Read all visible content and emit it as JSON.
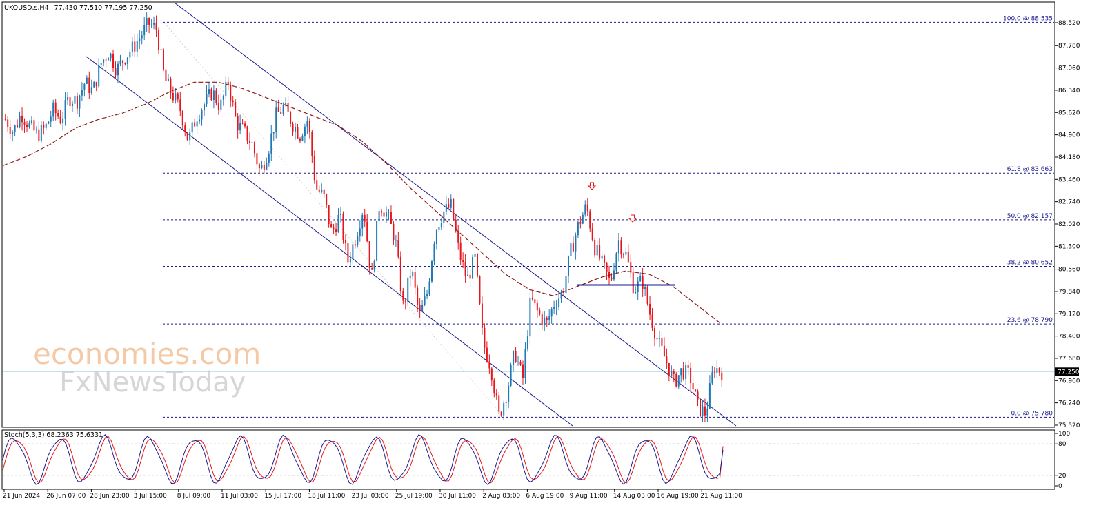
{
  "header": {
    "symbol": "UKOUSD.s,H4",
    "ohlc": "77.430 77.510 77.195 77.250"
  },
  "indicator_header": "Stoch(5,3,3) 68.2363 75.6331",
  "current_price": "77.250",
  "watermark": {
    "line1": "economies.com",
    "line2": "FxNewsToday"
  },
  "colors": {
    "bull": "#1f77b4",
    "bear": "#e8141b",
    "ma": "#8b1a1a",
    "channel": "#1a1a8c",
    "fib": "#1a1a8c",
    "stoch_main": "#1a1a8c",
    "stoch_signal": "#e8141b",
    "current_line": "#a8dce0"
  },
  "chart_data": {
    "type": "candlestick",
    "timeframe": "H4",
    "ylim": [
      75.52,
      88.82
    ],
    "y_ticks": [
      "88.520",
      "87.780",
      "87.060",
      "86.340",
      "85.620",
      "84.900",
      "84.180",
      "83.460",
      "82.740",
      "82.020",
      "81.300",
      "80.560",
      "79.840",
      "79.120",
      "78.400",
      "77.680",
      "76.960",
      "76.240",
      "75.520"
    ],
    "x_ticks": [
      "21 Jun 2024",
      "26 Jun 07:00",
      "28 Jun 23:00",
      "3 Jul 15:00",
      "8 Jul 09:00",
      "11 Jul 03:00",
      "15 Jul 17:00",
      "18 Jul 11:00",
      "23 Jul 03:00",
      "25 Jul 19:00",
      "30 Jul 11:00",
      "2 Aug 03:00",
      "6 Aug 19:00",
      "9 Aug 11:00",
      "14 Aug 03:00",
      "16 Aug 19:00",
      "21 Aug 11:00"
    ],
    "price_path": [
      85.4,
      85.0,
      85.6,
      85.2,
      84.9,
      85.1,
      85.7,
      85.4,
      86.1,
      86.0,
      86.6,
      86.3,
      87.2,
      87.6,
      87.0,
      87.4,
      87.7,
      88.1,
      88.5,
      88.3,
      86.7,
      86.2,
      85.7,
      84.7,
      85.5,
      85.9,
      86.3,
      85.8,
      86.6,
      85.3,
      85.0,
      84.6,
      83.7,
      84.4,
      85.5,
      85.8,
      85.3,
      84.9,
      85.4,
      83.2,
      82.9,
      81.7,
      82.3,
      80.8,
      81.6,
      82.6,
      80.2,
      82.7,
      82.3,
      81.5,
      79.3,
      80.6,
      79.0,
      79.8,
      81.8,
      82.4,
      82.6,
      81.1,
      80.2,
      80.9,
      78.2,
      77.4,
      75.8,
      76.6,
      77.9,
      77.0,
      79.6,
      79.1,
      78.8,
      79.5,
      79.8,
      81.1,
      82.0,
      82.6,
      81.3,
      80.7,
      80.1,
      81.5,
      81.0,
      79.9,
      80.2,
      79.1,
      78.2,
      77.6,
      76.9,
      77.3,
      77.1,
      76.1,
      75.9,
      77.4,
      77.25
    ],
    "moving_average": [
      83.9,
      84.2,
      84.6,
      85.1,
      85.4,
      85.6,
      85.9,
      86.3,
      86.6,
      86.6,
      86.4,
      86.1,
      85.8,
      85.5,
      85.2,
      84.7,
      84.0,
      83.2,
      82.5,
      81.8,
      81.1,
      80.4,
      79.9,
      79.7,
      80.0,
      80.3,
      80.5,
      80.4,
      80.0,
      79.4,
      78.8
    ],
    "stochastic": {
      "params": "5,3,3",
      "main": 68.2363,
      "signal": 75.6331,
      "levels": [
        20,
        80
      ],
      "y_ticks": [
        "100",
        "80",
        "20",
        "0"
      ]
    },
    "fibonacci": [
      {
        "label": "100.0 @ 88.535",
        "value": 88.535
      },
      {
        "label": "61.8 @ 83.663",
        "value": 83.663
      },
      {
        "label": "50.0 @ 82.157",
        "value": 82.157
      },
      {
        "label": "38.2 @ 80.652",
        "value": 80.652
      },
      {
        "label": "23.6 @ 78.790",
        "value": 78.79
      },
      {
        "label": "0.0 @ 75.780",
        "value": 75.78
      }
    ],
    "support_line": 80.05,
    "current_price": 77.25
  }
}
